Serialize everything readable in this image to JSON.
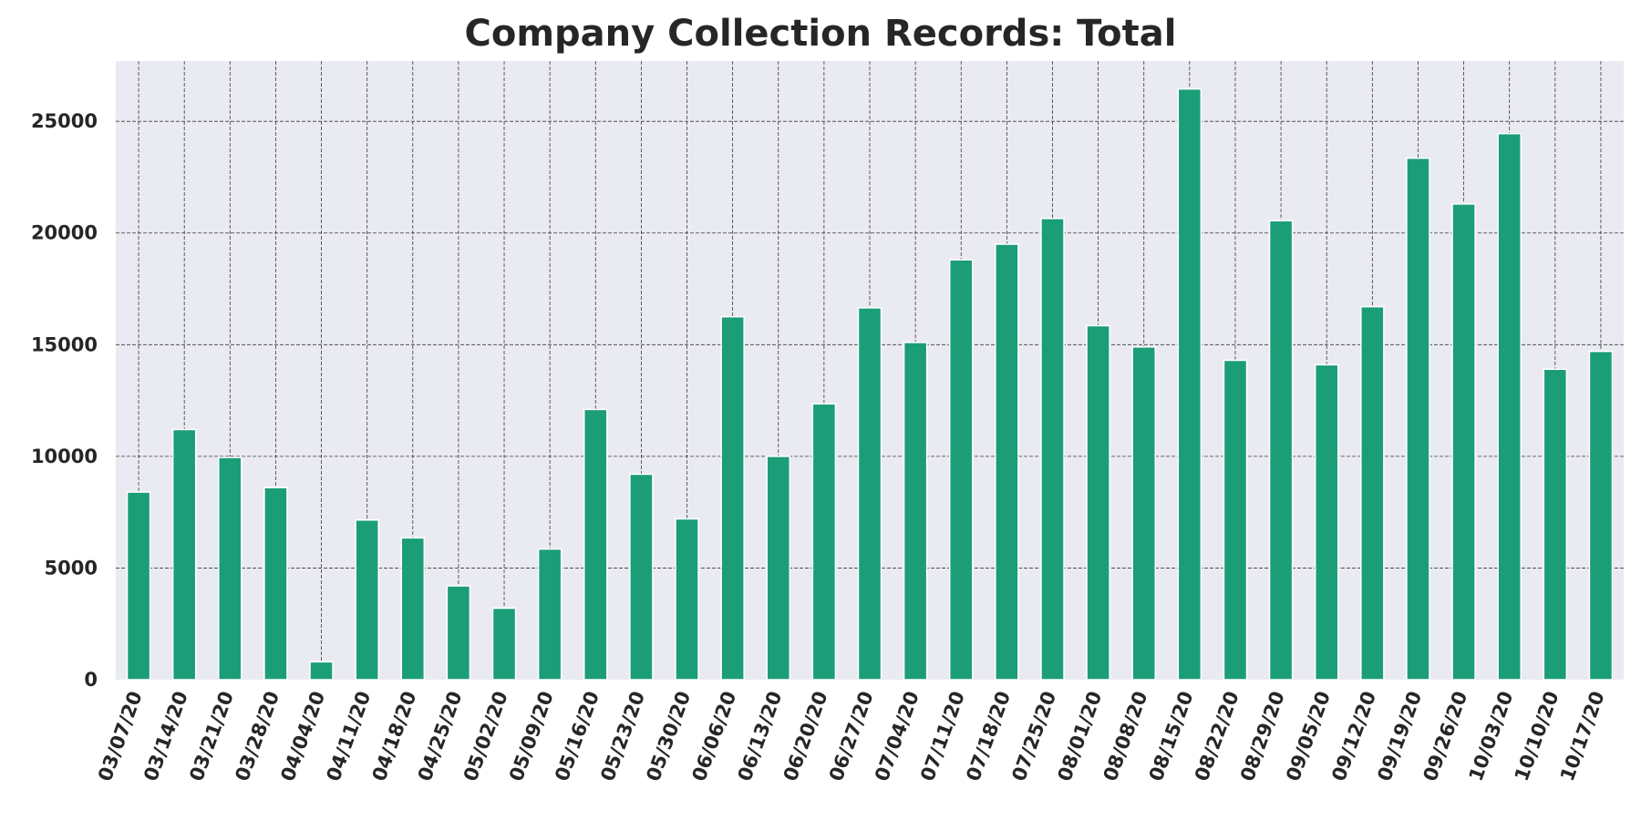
{
  "chart_data": {
    "type": "bar",
    "title": "Company Collection Records: Total",
    "xlabel": "",
    "ylabel": "",
    "categories": [
      "03/07/20",
      "03/14/20",
      "03/21/20",
      "03/28/20",
      "04/04/20",
      "04/11/20",
      "04/18/20",
      "04/25/20",
      "05/02/20",
      "05/09/20",
      "05/16/20",
      "05/23/20",
      "05/30/20",
      "06/06/20",
      "06/13/20",
      "06/20/20",
      "06/27/20",
      "07/04/20",
      "07/11/20",
      "07/18/20",
      "07/25/20",
      "08/01/20",
      "08/08/20",
      "08/15/20",
      "08/22/20",
      "08/29/20",
      "09/05/20",
      "09/12/20",
      "09/19/20",
      "09/26/20",
      "10/03/20",
      "10/10/20",
      "10/17/20"
    ],
    "values": [
      8400,
      11200,
      9950,
      8600,
      800,
      7150,
      6350,
      4200,
      3200,
      5850,
      12100,
      9200,
      7200,
      16250,
      10000,
      12350,
      16650,
      15100,
      18800,
      19500,
      20650,
      15850,
      14900,
      26450,
      14300,
      20550,
      14100,
      16700,
      23350,
      21300,
      24450,
      13900,
      14700
    ],
    "ylim": [
      0,
      27700
    ],
    "yticks": [
      0,
      5000,
      10000,
      15000,
      20000,
      25000
    ],
    "grid": true,
    "bar_color": "#1b9e77",
    "background_color": "#eaeaf2"
  }
}
